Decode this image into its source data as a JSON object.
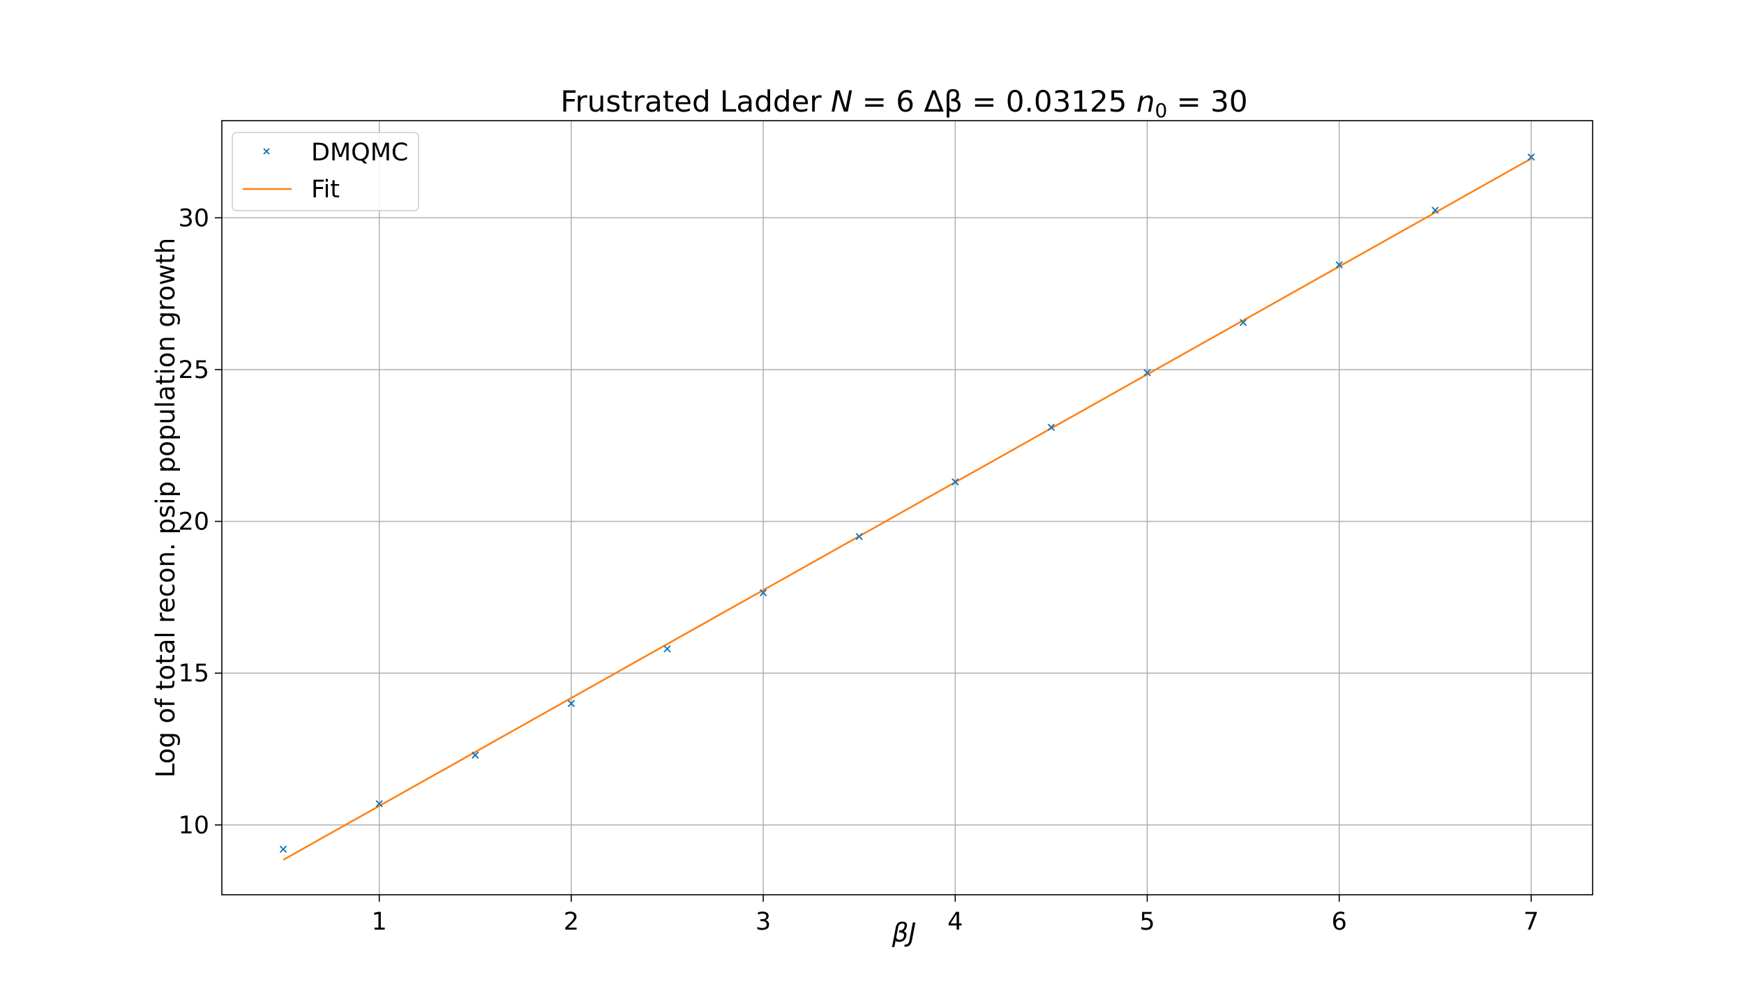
{
  "chart_data": {
    "type": "line",
    "title": {
      "prefix": "Frustrated Ladder ",
      "n_var": "N",
      "n_eq": " = 6 ",
      "dbeta_var": "Δβ",
      "dbeta_eq": " = 0.03125 ",
      "n0_var": "n",
      "n0_sub": "0",
      "n0_eq": " = 30"
    },
    "xlabel": "βJ",
    "ylabel": "Log of total recon. psip population growth",
    "xlim": [
      0.18,
      7.32
    ],
    "ylim": [
      7.7,
      33.2
    ],
    "xticks": [
      1,
      2,
      3,
      4,
      5,
      6,
      7
    ],
    "yticks": [
      10,
      15,
      20,
      25,
      30
    ],
    "xtick_labels": [
      "1",
      "2",
      "3",
      "4",
      "5",
      "6",
      "7"
    ],
    "ytick_labels": [
      "10",
      "15",
      "20",
      "25",
      "30"
    ],
    "grid": true,
    "legend_position": "upper-left",
    "series": [
      {
        "name": "DMQMC",
        "kind": "scatter",
        "marker": "x",
        "color": "#1f77b4",
        "x": [
          0.5,
          1.0,
          1.5,
          2.0,
          2.5,
          3.0,
          3.5,
          4.0,
          4.5,
          5.0,
          5.5,
          6.0,
          6.5,
          7.0
        ],
        "y": [
          9.2,
          10.7,
          12.3,
          14.0,
          15.8,
          17.65,
          19.5,
          21.3,
          23.1,
          24.9,
          26.55,
          28.45,
          30.25,
          32.0
        ]
      },
      {
        "name": "Fit",
        "kind": "line",
        "color": "#ff7f0e",
        "x": [
          0.5,
          7.0
        ],
        "y": [
          8.85,
          31.95
        ]
      }
    ]
  }
}
